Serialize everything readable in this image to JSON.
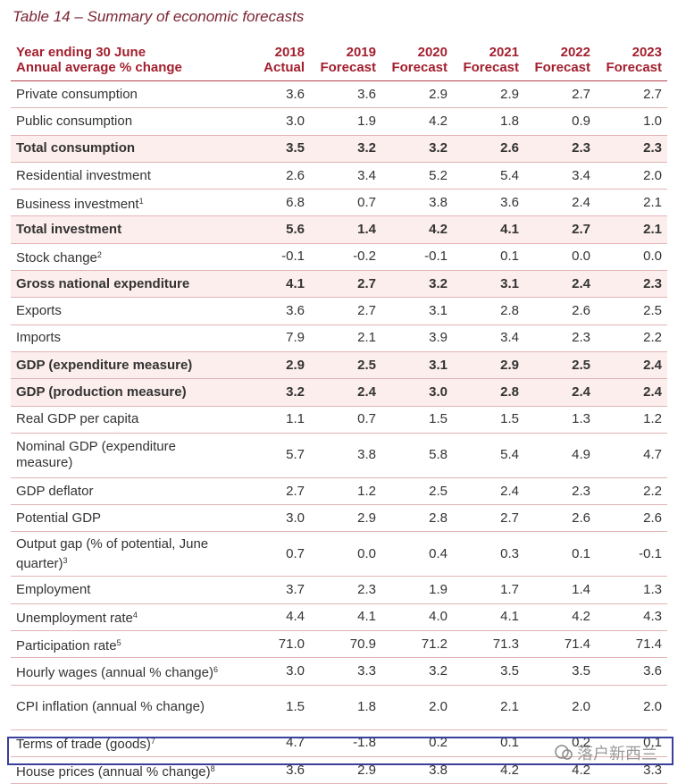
{
  "title": "Table 14 – Summary of economic forecasts",
  "table": {
    "header": {
      "label": [
        "Year ending 30 June",
        "Annual average % change"
      ],
      "columns": [
        {
          "year": "2018",
          "kind": "Actual"
        },
        {
          "year": "2019",
          "kind": "Forecast"
        },
        {
          "year": "2020",
          "kind": "Forecast"
        },
        {
          "year": "2021",
          "kind": "Forecast"
        },
        {
          "year": "2022",
          "kind": "Forecast"
        },
        {
          "year": "2023",
          "kind": "Forecast"
        }
      ]
    },
    "rows": [
      {
        "label": "Private consumption",
        "values": [
          "3.6",
          "3.6",
          "2.9",
          "2.9",
          "2.7",
          "2.7"
        ]
      },
      {
        "label": "Public consumption",
        "values": [
          "3.0",
          "1.9",
          "4.2",
          "1.8",
          "0.9",
          "1.0"
        ]
      },
      {
        "label": "Total consumption",
        "bold": true,
        "values": [
          "3.5",
          "3.2",
          "3.2",
          "2.6",
          "2.3",
          "2.3"
        ]
      },
      {
        "label": "Residential investment",
        "values": [
          "2.6",
          "3.4",
          "5.2",
          "5.4",
          "3.4",
          "2.0"
        ]
      },
      {
        "label": "Business investment",
        "note": "1",
        "values": [
          "6.8",
          "0.7",
          "3.8",
          "3.6",
          "2.4",
          "2.1"
        ]
      },
      {
        "label": "Total investment",
        "bold": true,
        "values": [
          "5.6",
          "1.4",
          "4.2",
          "4.1",
          "2.7",
          "2.1"
        ]
      },
      {
        "label": "Stock change",
        "note": "2",
        "values": [
          "-0.1",
          "-0.2",
          "-0.1",
          "0.1",
          "0.0",
          "0.0"
        ]
      },
      {
        "label": "Gross national expenditure",
        "bold": true,
        "values": [
          "4.1",
          "2.7",
          "3.2",
          "3.1",
          "2.4",
          "2.3"
        ]
      },
      {
        "label": "Exports",
        "values": [
          "3.6",
          "2.7",
          "3.1",
          "2.8",
          "2.6",
          "2.5"
        ]
      },
      {
        "label": "Imports",
        "values": [
          "7.9",
          "2.1",
          "3.9",
          "3.4",
          "2.3",
          "2.2"
        ]
      },
      {
        "label": "GDP (expenditure measure)",
        "bold": true,
        "values": [
          "2.9",
          "2.5",
          "3.1",
          "2.9",
          "2.5",
          "2.4"
        ]
      },
      {
        "label": "GDP (production measure)",
        "bold": true,
        "values": [
          "3.2",
          "2.4",
          "3.0",
          "2.8",
          "2.4",
          "2.4"
        ]
      },
      {
        "label": "Real GDP per capita",
        "values": [
          "1.1",
          "0.7",
          "1.5",
          "1.5",
          "1.3",
          "1.2"
        ]
      },
      {
        "label": "Nominal GDP (expenditure measure)",
        "values": [
          "5.7",
          "3.8",
          "5.8",
          "5.4",
          "4.9",
          "4.7"
        ]
      },
      {
        "label": "GDP deflator",
        "values": [
          "2.7",
          "1.2",
          "2.5",
          "2.4",
          "2.3",
          "2.2"
        ]
      },
      {
        "label": "Potential GDP",
        "values": [
          "3.0",
          "2.9",
          "2.8",
          "2.7",
          "2.6",
          "2.6"
        ]
      },
      {
        "label": "Output gap (% of potential, June quarter)",
        "note": "3",
        "values": [
          "0.7",
          "0.0",
          "0.4",
          "0.3",
          "0.1",
          "-0.1"
        ]
      },
      {
        "label": "Employment",
        "values": [
          "3.7",
          "2.3",
          "1.9",
          "1.7",
          "1.4",
          "1.3"
        ]
      },
      {
        "label": "Unemployment rate",
        "note": "4",
        "values": [
          "4.4",
          "4.1",
          "4.0",
          "4.1",
          "4.2",
          "4.3"
        ]
      },
      {
        "label": "Participation rate",
        "note": "5",
        "values": [
          "71.0",
          "70.9",
          "71.2",
          "71.3",
          "71.4",
          "71.4"
        ]
      },
      {
        "label": "Hourly wages (annual % change)",
        "note": "6",
        "values": [
          "3.0",
          "3.3",
          "3.2",
          "3.5",
          "3.5",
          "3.6"
        ]
      },
      {
        "label": "CPI inflation (annual % change)",
        "values": [
          "1.5",
          "1.8",
          "2.0",
          "2.1",
          "2.0",
          "2.0"
        ]
      },
      {
        "label": "Terms of trade (goods)",
        "note": "7",
        "values": [
          "4.7",
          "-1.8",
          "0.2",
          "0.1",
          "0.2",
          "0.1"
        ]
      },
      {
        "label": "House prices (annual % change)",
        "note": "8",
        "values": [
          "3.6",
          "2.9",
          "3.8",
          "4.2",
          "4.2",
          "3.3"
        ]
      }
    ]
  },
  "watermark": "落户新西兰"
}
